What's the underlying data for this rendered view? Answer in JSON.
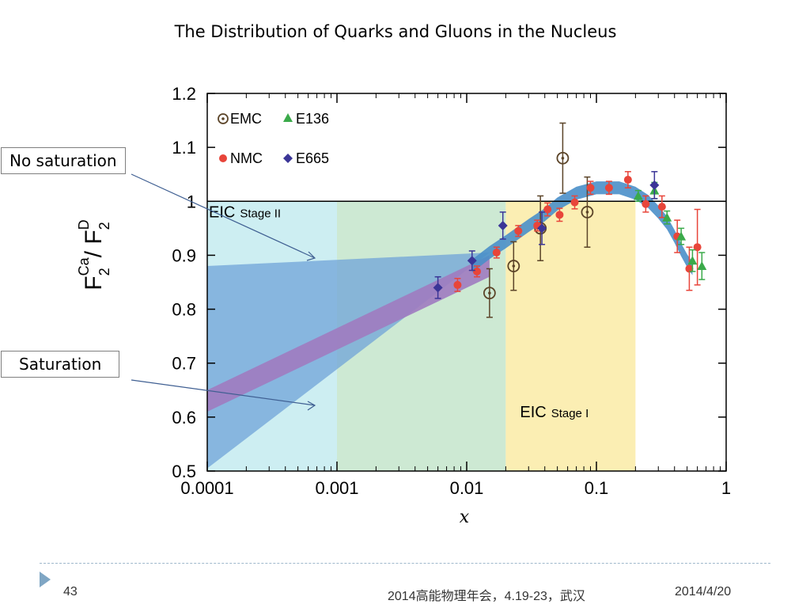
{
  "slide": {
    "title": "The Distribution of Quarks and Gluons in the Nucleus",
    "callout_no_saturation": "No saturation",
    "callout_saturation": "Saturation",
    "page_number": "43",
    "conference": "2014高能物理年会，4.19-23，武汉",
    "date": "2014/4/20"
  },
  "colors": {
    "stage2_region": "#cdeef2",
    "overlap_region": "#cde9d3",
    "stage1_region": "#fbeeb3",
    "fit_band": "#4a8fc9",
    "saturation_band": "#a07bc0",
    "no_saturation_band": "#6fa3d8",
    "emc": "#5b4428",
    "nmc": "#e8453a",
    "e136": "#3aaa4a",
    "e665": "#3b3597"
  },
  "chart_data": {
    "type": "scatter",
    "x_scale": "log",
    "xlim": [
      0.0001,
      1
    ],
    "ylim": [
      0.5,
      1.2
    ],
    "xlabel": "x",
    "ylabel": "F2^Ca / F2^D",
    "ylabel_parts": {
      "F": "F",
      "sub": "2",
      "ca": "Ca",
      "slash": "/ F",
      "sub2": "2",
      "d": "D"
    },
    "x_ticks": [
      {
        "value": 0.0001,
        "label": "0.0001"
      },
      {
        "value": 0.001,
        "label": "0.001"
      },
      {
        "value": 0.01,
        "label": "0.01"
      },
      {
        "value": 0.1,
        "label": "0.1"
      },
      {
        "value": 1,
        "label": "1"
      }
    ],
    "y_ticks": [
      {
        "value": 0.5,
        "label": "0.5"
      },
      {
        "value": 0.6,
        "label": "0.6"
      },
      {
        "value": 0.7,
        "label": "0.7"
      },
      {
        "value": 0.8,
        "label": "0.8"
      },
      {
        "value": 0.9,
        "label": "0.9"
      },
      {
        "value": 1.0,
        "label": "1"
      },
      {
        "value": 1.1,
        "label": "1.1"
      },
      {
        "value": 1.2,
        "label": "1.2"
      }
    ],
    "reference_line": 1.0,
    "regions": [
      {
        "label": "EIC",
        "sublabel": "Stage II",
        "x_range": [
          0.0001,
          0.02
        ],
        "y_range": [
          0.5,
          1.0
        ]
      },
      {
        "label": "EIC",
        "sublabel": "Stage I",
        "x_range": [
          0.001,
          0.2
        ],
        "y_range": [
          0.5,
          1.0
        ]
      }
    ],
    "bands": {
      "no_saturation": {
        "x": [
          0.0001,
          0.015,
          0.0001
        ],
        "y": [
          0.88,
          0.905,
          0.505
        ],
        "note": "polygon"
      },
      "saturation": {
        "x": [
          0.0001,
          0.015
        ],
        "y_center": [
          0.63,
          0.88
        ],
        "half_width": 0.02
      },
      "fit": {
        "x": [
          0.011,
          0.015,
          0.02,
          0.03,
          0.04,
          0.05,
          0.07,
          0.1,
          0.15,
          0.2,
          0.25,
          0.3,
          0.35,
          0.4,
          0.45,
          0.5,
          0.55
        ],
        "y": [
          0.88,
          0.905,
          0.925,
          0.955,
          0.975,
          0.995,
          1.015,
          1.025,
          1.025,
          1.015,
          1.0,
          0.98,
          0.96,
          0.935,
          0.91,
          0.89,
          0.875
        ],
        "half_width": 0.012
      }
    },
    "legend": [
      {
        "name": "EMC",
        "marker": "circle-dot"
      },
      {
        "name": "E136",
        "marker": "triangle"
      },
      {
        "name": "NMC",
        "marker": "dot"
      },
      {
        "name": "E665",
        "marker": "diamond"
      }
    ],
    "series": [
      {
        "name": "EMC",
        "marker": "circle-dot",
        "points": [
          {
            "x": 0.015,
            "y": 0.83,
            "err": 0.045
          },
          {
            "x": 0.023,
            "y": 0.88,
            "err": 0.045
          },
          {
            "x": 0.037,
            "y": 0.95,
            "err": 0.06
          },
          {
            "x": 0.055,
            "y": 1.08,
            "err": 0.065
          },
          {
            "x": 0.085,
            "y": 0.98,
            "err": 0.065
          }
        ]
      },
      {
        "name": "NMC",
        "marker": "dot",
        "points": [
          {
            "x": 0.0085,
            "y": 0.845,
            "err": 0.012
          },
          {
            "x": 0.012,
            "y": 0.87,
            "err": 0.01
          },
          {
            "x": 0.017,
            "y": 0.905,
            "err": 0.01
          },
          {
            "x": 0.025,
            "y": 0.945,
            "err": 0.01
          },
          {
            "x": 0.035,
            "y": 0.955,
            "err": 0.01
          },
          {
            "x": 0.042,
            "y": 0.985,
            "err": 0.012
          },
          {
            "x": 0.052,
            "y": 0.975,
            "err": 0.012
          },
          {
            "x": 0.068,
            "y": 0.998,
            "err": 0.012
          },
          {
            "x": 0.09,
            "y": 1.025,
            "err": 0.012
          },
          {
            "x": 0.125,
            "y": 1.025,
            "err": 0.012
          },
          {
            "x": 0.175,
            "y": 1.04,
            "err": 0.015
          },
          {
            "x": 0.24,
            "y": 0.995,
            "err": 0.015
          },
          {
            "x": 0.32,
            "y": 0.99,
            "err": 0.02
          },
          {
            "x": 0.42,
            "y": 0.935,
            "err": 0.03
          },
          {
            "x": 0.52,
            "y": 0.875,
            "err": 0.04
          },
          {
            "x": 0.6,
            "y": 0.915,
            "err": 0.07
          }
        ]
      },
      {
        "name": "E136",
        "marker": "triangle",
        "points": [
          {
            "x": 0.21,
            "y": 1.01,
            "err": 0.01
          },
          {
            "x": 0.28,
            "y": 1.02,
            "err": 0.015
          },
          {
            "x": 0.35,
            "y": 0.97,
            "err": 0.012
          },
          {
            "x": 0.45,
            "y": 0.935,
            "err": 0.015
          },
          {
            "x": 0.55,
            "y": 0.89,
            "err": 0.02
          },
          {
            "x": 0.65,
            "y": 0.88,
            "err": 0.025
          }
        ]
      },
      {
        "name": "E665",
        "marker": "diamond",
        "points": [
          {
            "x": 0.006,
            "y": 0.84,
            "err": 0.02
          },
          {
            "x": 0.011,
            "y": 0.89,
            "err": 0.018
          },
          {
            "x": 0.019,
            "y": 0.955,
            "err": 0.025
          },
          {
            "x": 0.038,
            "y": 0.95,
            "err": 0.03
          },
          {
            "x": 0.28,
            "y": 1.03,
            "err": 0.025
          }
        ]
      }
    ]
  }
}
